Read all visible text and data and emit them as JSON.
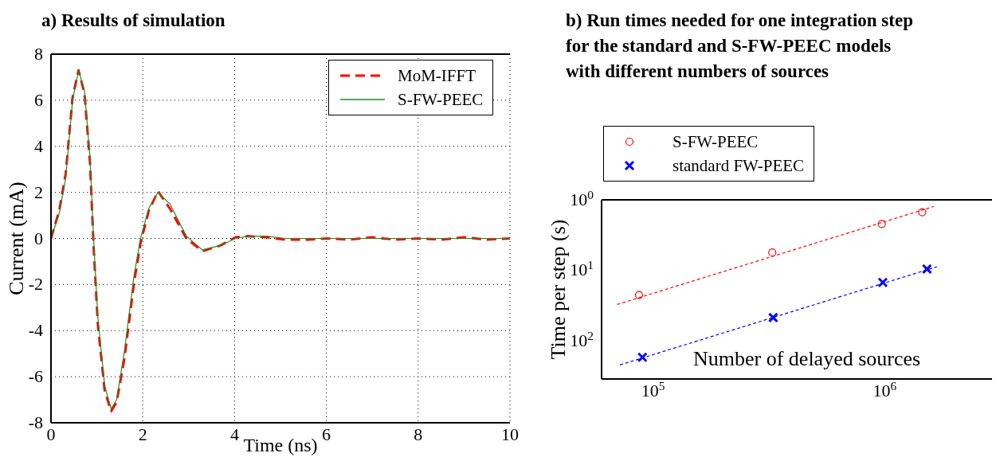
{
  "chart_data": [
    {
      "type": "line",
      "title": "a) Results of simulation",
      "xlabel": "Time (ns)",
      "ylabel": "Current (mA)",
      "xlim": [
        0,
        10
      ],
      "ylim": [
        -8,
        8
      ],
      "xticks": [
        0,
        2,
        4,
        6,
        8,
        10
      ],
      "yticks": [
        -8,
        -6,
        -4,
        -2,
        0,
        2,
        4,
        6,
        8
      ],
      "grid": true,
      "legend": "top right",
      "marker": "none",
      "series": [
        {
          "name": "MoM-IFFT",
          "color": "#ff0000",
          "line_style": "dashed",
          "x": [
            0,
            0.18,
            0.32,
            0.47,
            0.6,
            0.73,
            0.85,
            0.93,
            1.02,
            1.17,
            1.31,
            1.43,
            1.6,
            1.81,
            1.95,
            2.13,
            2.33,
            2.59,
            2.95,
            3.3,
            3.7,
            4.02,
            4.29,
            4.7,
            5.1,
            5.6,
            6,
            6.5,
            7,
            7.5,
            8,
            8.5,
            9,
            9.5,
            10
          ],
          "values": [
            0,
            1.2,
            2.8,
            6.1,
            7.3,
            6.3,
            3.3,
            -0.4,
            -3.7,
            -6.6,
            -7.5,
            -7.1,
            -5.2,
            -1.9,
            -0.2,
            1.2,
            2.05,
            1.3,
            0,
            -0.55,
            -0.3,
            0.05,
            0.1,
            0.05,
            -0.05,
            -0.05,
            0,
            -0.05,
            0.05,
            -0.05,
            0,
            -0.05,
            0.05,
            -0.05,
            0
          ]
        },
        {
          "name": "S-FW-PEEC",
          "color": "#228b22",
          "line_style": "solid",
          "x": [
            0,
            0.18,
            0.32,
            0.47,
            0.6,
            0.73,
            0.85,
            0.93,
            1.02,
            1.17,
            1.31,
            1.43,
            1.6,
            1.81,
            1.95,
            2.13,
            2.33,
            2.59,
            2.95,
            3.3,
            3.7,
            4.02,
            4.29,
            4.7,
            5.1,
            5.6,
            6,
            6.5,
            7,
            7.5,
            8,
            8.5,
            9,
            9.5,
            10
          ],
          "values": [
            0,
            1.1,
            2.6,
            6,
            7.3,
            6.4,
            3.5,
            -0.1,
            -3.4,
            -6.4,
            -7.4,
            -7,
            -4.9,
            -1.6,
            0,
            1.3,
            2,
            1.5,
            0.1,
            -0.5,
            -0.3,
            0,
            0.1,
            0.1,
            0,
            0,
            0,
            0,
            0,
            0,
            0,
            0,
            0,
            0,
            0
          ]
        }
      ]
    },
    {
      "type": "scatter",
      "title": "b) Run times needed for one integration step\nfor the standard and S-FW-PEEC models\nwith different numbers of sources",
      "xlabel": "Number of delayed sources",
      "ylabel": "Time per step (s)",
      "log": "xy",
      "xlim": [
        60000,
        2900000
      ],
      "ylim": [
        350,
        1
      ],
      "xticks": [
        {
          "value": 100000,
          "label": "10$^{5}$"
        },
        {
          "value": 1000000,
          "label": "10$^{6}$"
        }
      ],
      "yticks": [
        {
          "value": 1,
          "label": "10$^{0}$"
        },
        {
          "value": 10,
          "label": "10$^{1}$"
        },
        {
          "value": 100,
          "label": "10$^{2}$"
        }
      ],
      "grid": false,
      "legend": "top left",
      "series": [
        {
          "name": "S-FW-PEEC",
          "color": "#ff0000",
          "marker": "circle",
          "x": [
            87000,
            327000,
            970000,
            1450000
          ],
          "values": [
            22.5,
            5.6,
            2.2,
            1.5
          ]
        },
        {
          "name": "standard FW-PEEC",
          "color": "#0000ff",
          "marker": "cross",
          "x": [
            90000,
            330000,
            980000,
            1520000
          ],
          "values": [
            172,
            47,
            14.9,
            9.6
          ]
        },
        {
          "type": "line",
          "color": "#ff0000",
          "line_style": "dashed",
          "marker": "none",
          "x": [
            70000,
            1630000
          ],
          "values": [
            30.6,
            1.24
          ]
        },
        {
          "type": "line",
          "color": "#0000ff",
          "line_style": "dashed",
          "marker": "none",
          "x": [
            72000,
            1680000
          ],
          "values": [
            221,
            8.9
          ]
        }
      ]
    }
  ]
}
